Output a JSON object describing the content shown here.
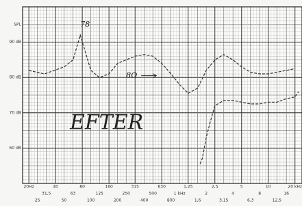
{
  "chart_data": {
    "type": "line",
    "y_label": "SPL",
    "log_x": true,
    "grid": true,
    "xlim": [
      17,
      24000
    ],
    "ylim": [
      50,
      100
    ],
    "yticks": [
      {
        "value": 60,
        "label": "60 dB"
      },
      {
        "value": 70,
        "label": "70 dB"
      },
      {
        "value": 80,
        "label": "80 dB"
      },
      {
        "value": 90,
        "label": "90 dB"
      }
    ],
    "xticks": [
      {
        "value": 20,
        "label": "20Hz"
      },
      25,
      {
        "value": 31.5,
        "label": "31,5"
      },
      40,
      50,
      63,
      80,
      100,
      125,
      160,
      200,
      250,
      315,
      400,
      500,
      630,
      800,
      {
        "value": 1000,
        "label": "1 kHz"
      },
      {
        "value": 1250,
        "label": "1,25"
      },
      {
        "value": 1600,
        "label": "1,6"
      },
      {
        "value": 2000,
        "label": "2"
      },
      {
        "value": 2500,
        "label": "2,5"
      },
      {
        "value": 3150,
        "label": "3,15"
      },
      {
        "value": 4000,
        "label": "4"
      },
      {
        "value": 5000,
        "label": "5"
      },
      {
        "value": 6300,
        "label": "6,3"
      },
      {
        "value": 8000,
        "label": "8"
      },
      {
        "value": 10000,
        "label": "10"
      },
      {
        "value": 12500,
        "label": "12,5"
      },
      {
        "value": 16000,
        "label": "16"
      },
      {
        "value": 20000,
        "label": "20 kHz"
      }
    ],
    "series": [
      {
        "color": "#333333",
        "x": [
          20,
          30,
          50,
          63,
          76,
          100,
          125,
          160,
          200,
          250,
          315,
          400,
          500,
          630,
          800,
          1000,
          1250,
          1600,
          2000,
          2500,
          3150,
          4000,
          5000,
          6300,
          8000,
          10000,
          12500,
          16000,
          20000
        ],
        "values": [
          82,
          81,
          83,
          85,
          92,
          82,
          80,
          81,
          84,
          85,
          86,
          86.5,
          86,
          84,
          81,
          78,
          75.5,
          77,
          82,
          85,
          86.5,
          85,
          83,
          81.5,
          81,
          81,
          81.5,
          82,
          82.5
        ]
      },
      {
        "color": "#333333",
        "x": [
          1700,
          1800,
          2000,
          2250,
          2500,
          3150,
          4000,
          5000,
          6300,
          8000,
          10000,
          12500,
          16000,
          20000,
          22000
        ],
        "values": [
          55.5,
          57,
          63,
          68,
          72,
          73.5,
          73.5,
          73,
          72.5,
          72.5,
          73,
          73,
          74,
          74.5,
          76
        ]
      }
    ],
    "annotations": [
      {
        "text": "78",
        "x": 76,
        "y": 95
      },
      {
        "text": "8Ω",
        "x": 250,
        "y": 80.5
      },
      {
        "text": "EFTER",
        "x": 58,
        "y": 67
      }
    ]
  }
}
